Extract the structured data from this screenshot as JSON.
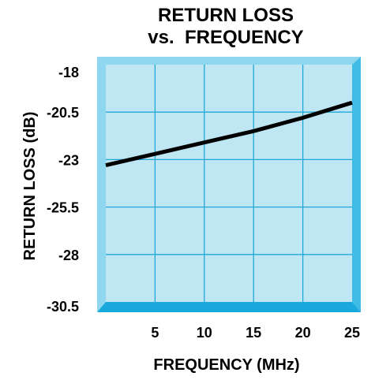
{
  "chart_data": {
    "type": "line",
    "title_lines": [
      "RETURN LOSS",
      "vs.  FREQUENCY"
    ],
    "xlabel": "FREQUENCY (MHz)",
    "ylabel": "RETURN LOSS (dB)",
    "xlim": [
      0,
      25
    ],
    "ylim": [
      -30.5,
      -18
    ],
    "x_ticks": [
      5,
      10,
      15,
      20,
      25
    ],
    "y_ticks": [
      -18,
      -20.5,
      -23,
      -25.5,
      -28,
      -30.5
    ],
    "x_tick_labels": [
      "5",
      "10",
      "15",
      "20",
      "25"
    ],
    "y_tick_labels": [
      "-18",
      "-20.5",
      "-23",
      "-25.5",
      "-28",
      "-30.5"
    ],
    "grid": true,
    "colors": {
      "plot_fill": "#bfe6f3",
      "border_light": "#8fd6ef",
      "border_dark": "#1aa9dd",
      "grid": "#20a8d8",
      "line": "#000000"
    },
    "series": [
      {
        "x": [
          0,
          5,
          10,
          15,
          20,
          25
        ],
        "y": [
          -23.3,
          -22.7,
          -22.1,
          -21.5,
          -20.8,
          -20.0
        ]
      }
    ]
  }
}
